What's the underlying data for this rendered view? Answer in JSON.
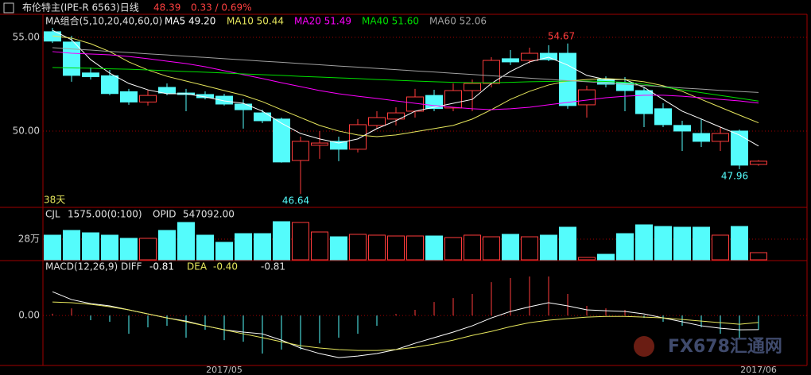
{
  "header": {
    "title": "布伦特主(IPE-R 6563)日线",
    "price": "48.39",
    "change": "0.33 / 0.69%",
    "days": "38天"
  },
  "watermark": "FX678汇通网",
  "chart_data": [
    {
      "type": "candlestick",
      "legend_title": "MA组合(5,10,20,40,60,0)",
      "categories": [
        null,
        null,
        null,
        null,
        null,
        null,
        null,
        null,
        null,
        "2017/05",
        null,
        null,
        null,
        null,
        null,
        null,
        null,
        null,
        null,
        null,
        null,
        null,
        null,
        null,
        null,
        null,
        null,
        null,
        null,
        null,
        null,
        null,
        null,
        null,
        null,
        null,
        null,
        "2017/06"
      ],
      "open": [
        55.3,
        54.75,
        53.1,
        52.95,
        52.1,
        51.55,
        52.33,
        52.03,
        51.95,
        51.86,
        51.44,
        50.97,
        50.64,
        48.43,
        49.24,
        49.45,
        49.03,
        50.3,
        50.64,
        51.06,
        51.9,
        51.23,
        52.16,
        52.54,
        53.86,
        53.77,
        54.15,
        54.15,
        51.4,
        52.75,
        52.58,
        52.16,
        51.19,
        50.3,
        49.87,
        49.45,
        50.0,
        48.22
      ],
      "high": [
        55.51,
        55.08,
        53.39,
        53.26,
        52.25,
        52.2,
        52.54,
        52.25,
        52.12,
        51.99,
        51.69,
        51.14,
        50.72,
        49.7,
        50.0,
        49.7,
        50.64,
        51.06,
        51.27,
        52.25,
        52.2,
        52.54,
        52.75,
        53.94,
        54.32,
        54.45,
        54.58,
        54.67,
        52.42,
        52.92,
        52.88,
        52.33,
        51.48,
        50.55,
        50.64,
        50.21,
        50.08,
        48.45
      ],
      "low": [
        54.7,
        52.63,
        52.75,
        51.91,
        51.4,
        51.36,
        51.91,
        51.06,
        51.69,
        51.36,
        50.13,
        50.42,
        48.31,
        46.64,
        48.52,
        48.39,
        48.86,
        50.13,
        50.3,
        50.72,
        51.06,
        51.06,
        51.06,
        52.33,
        53.52,
        53.6,
        53.73,
        51.19,
        50.72,
        52.33,
        51.06,
        50.21,
        50.21,
        48.94,
        49.15,
        48.94,
        47.96,
        48.15
      ],
      "close": [
        54.8,
        52.97,
        52.9,
        52.0,
        51.55,
        51.9,
        52.03,
        51.95,
        51.78,
        51.44,
        51.14,
        50.55,
        48.35,
        49.45,
        49.36,
        49.03,
        50.34,
        50.72,
        50.97,
        51.82,
        51.2,
        52.16,
        52.54,
        53.77,
        53.69,
        54.15,
        53.81,
        51.36,
        52.2,
        52.5,
        52.16,
        50.93,
        50.34,
        50.0,
        49.45,
        49.87,
        48.18,
        48.39
      ],
      "value_labels": {
        "high": [
          null,
          null,
          null,
          null,
          null,
          null,
          null,
          null,
          null,
          null,
          null,
          null,
          null,
          null,
          null,
          null,
          null,
          null,
          null,
          null,
          null,
          null,
          null,
          null,
          null,
          null,
          null,
          "54.67",
          null,
          null,
          null,
          null,
          null,
          null,
          null,
          null,
          null,
          null
        ],
        "low": [
          null,
          null,
          null,
          null,
          null,
          null,
          null,
          null,
          null,
          null,
          null,
          null,
          null,
          "46.64",
          null,
          null,
          null,
          null,
          null,
          null,
          null,
          null,
          null,
          null,
          null,
          null,
          null,
          null,
          null,
          null,
          null,
          null,
          null,
          null,
          null,
          null,
          "47.96",
          null
        ]
      },
      "up_color": "#ff3c3c",
      "down_color": "#54fcfc",
      "series": [
        {
          "name": "MA5 49.20",
          "color": "#ffffff",
          "values": [
            55.38,
            54.87,
            53.81,
            53.09,
            52.54,
            52.2,
            51.99,
            51.99,
            51.82,
            51.61,
            51.48,
            51.06,
            50.42,
            49.87,
            49.58,
            49.36,
            49.58,
            50.13,
            50.55,
            51.06,
            51.27,
            51.48,
            51.69,
            52.54,
            53.18,
            53.69,
            53.94,
            53.52,
            52.97,
            52.75,
            52.75,
            52.33,
            51.69,
            51.06,
            50.64,
            50.21,
            49.79,
            49.2
          ]
        },
        {
          "name": "MA10 50.44",
          "color": "#e6e65c",
          "values": [
            55.08,
            54.96,
            54.66,
            54.24,
            53.69,
            53.26,
            52.92,
            52.67,
            52.42,
            52.16,
            51.91,
            51.57,
            51.14,
            50.72,
            50.3,
            50.0,
            49.79,
            49.7,
            49.79,
            49.96,
            50.13,
            50.3,
            50.64,
            51.14,
            51.69,
            52.12,
            52.46,
            52.67,
            52.75,
            52.8,
            52.75,
            52.63,
            52.42,
            52.12,
            51.69,
            51.27,
            50.85,
            50.44
          ]
        },
        {
          "name": "MA20 51.49",
          "color": "#ff00ff",
          "values": [
            54.24,
            54.15,
            54.11,
            54.07,
            53.98,
            53.86,
            53.73,
            53.6,
            53.43,
            53.22,
            53.01,
            52.8,
            52.58,
            52.37,
            52.16,
            51.99,
            51.86,
            51.74,
            51.61,
            51.48,
            51.36,
            51.27,
            51.19,
            51.14,
            51.19,
            51.27,
            51.4,
            51.53,
            51.65,
            51.78,
            51.86,
            51.91,
            51.91,
            51.86,
            51.78,
            51.69,
            51.61,
            51.49
          ]
        },
        {
          "name": "MA40 51.60",
          "color": "#00e000",
          "values": [
            53.39,
            53.37,
            53.35,
            53.32,
            53.3,
            53.26,
            53.22,
            53.18,
            53.14,
            53.1,
            53.05,
            53.01,
            52.97,
            52.92,
            52.88,
            52.84,
            52.8,
            52.75,
            52.71,
            52.67,
            52.63,
            52.6,
            52.58,
            52.58,
            52.6,
            52.63,
            52.65,
            52.67,
            52.67,
            52.65,
            52.6,
            52.5,
            52.35,
            52.2,
            52.05,
            51.9,
            51.75,
            51.6
          ]
        },
        {
          "name": "MA60 52.06",
          "color": "#a0a0a0",
          "values": [
            54.45,
            54.38,
            54.32,
            54.25,
            54.19,
            54.12,
            54.06,
            53.99,
            53.93,
            53.86,
            53.8,
            53.73,
            53.67,
            53.6,
            53.54,
            53.47,
            53.41,
            53.34,
            53.28,
            53.21,
            53.15,
            53.08,
            53.02,
            52.95,
            52.89,
            52.82,
            52.76,
            52.69,
            52.63,
            52.56,
            52.5,
            52.43,
            52.37,
            52.3,
            52.24,
            52.17,
            52.11,
            52.06
          ]
        }
      ],
      "ylim": [
        45.97,
        56.23
      ],
      "yticks": [
        {
          "value": 55,
          "label": "55.00"
        },
        {
          "value": 50,
          "label": "50.00"
        }
      ],
      "grid": true
    },
    {
      "type": "bar",
      "title": "CJL",
      "subtitle": "1575.00(0:100)",
      "opid_name": "OPID",
      "opid_value": "547092.00",
      "values": [
        33.4,
        39.8,
        36.6,
        33.4,
        29.1,
        29.1,
        39.8,
        50.6,
        33.4,
        23.7,
        35.5,
        35.5,
        51.7,
        50.6,
        37.7,
        31.2,
        34.5,
        33.4,
        32.3,
        32.3,
        32.3,
        30.2,
        33.4,
        31.2,
        34.5,
        31.2,
        33.4,
        44.2,
        3.2,
        7.5,
        35.5,
        47.4,
        45.2,
        44.2,
        44.2,
        33.4,
        45.2,
        9.7
      ],
      "ylim": [
        0,
        70
      ],
      "yticks": [
        {
          "value": 28,
          "label": "28万"
        }
      ]
    },
    {
      "type": "macd",
      "title": "MACD(12,26,9)",
      "series": [
        {
          "name": "DIFF",
          "value_label": "-0.81",
          "color": "#ffffff",
          "values": [
            1.36,
            0.91,
            0.68,
            0.55,
            0.32,
            0.09,
            -0.14,
            -0.32,
            -0.59,
            -0.82,
            -0.95,
            -1.05,
            -1.41,
            -1.86,
            -2.18,
            -2.41,
            -2.32,
            -2.18,
            -1.95,
            -1.59,
            -1.27,
            -0.95,
            -0.59,
            -0.14,
            0.23,
            0.5,
            0.73,
            0.55,
            0.32,
            0.27,
            0.23,
            0.09,
            -0.14,
            -0.36,
            -0.59,
            -0.73,
            -0.82,
            -0.81
          ]
        },
        {
          "name": "DEA",
          "value_label": "-0.40",
          "color": "#e6e65c",
          "values": [
            0.77,
            0.73,
            0.64,
            0.5,
            0.32,
            0.09,
            -0.14,
            -0.36,
            -0.59,
            -0.82,
            -1.05,
            -1.27,
            -1.5,
            -1.73,
            -1.86,
            -1.95,
            -2.0,
            -2.0,
            -1.95,
            -1.82,
            -1.64,
            -1.41,
            -1.14,
            -0.91,
            -0.64,
            -0.41,
            -0.27,
            -0.18,
            -0.09,
            -0.05,
            -0.05,
            -0.09,
            -0.14,
            -0.23,
            -0.32,
            -0.41,
            -0.5,
            -0.4
          ]
        }
      ],
      "histogram": {
        "value_label": "-0.81",
        "values": [
          0.1,
          0.41,
          -0.27,
          -0.36,
          -1.05,
          -0.68,
          -0.59,
          -1.27,
          -0.82,
          -1.41,
          -1.5,
          -2.18,
          -1.95,
          -1.95,
          -1.59,
          -1.27,
          -1.05,
          -0.59,
          0.09,
          0.32,
          0.77,
          1.0,
          1.23,
          1.91,
          2.14,
          2.23,
          2.23,
          1.23,
          0.55,
          0.41,
          0.32,
          -0.14,
          -0.36,
          -0.59,
          -0.68,
          -1.05,
          -1.27,
          -0.82
        ]
      },
      "ylim": [
        -2.86,
        3.05
      ],
      "yticks": [
        {
          "value": 0,
          "label": "0.00"
        }
      ]
    }
  ]
}
